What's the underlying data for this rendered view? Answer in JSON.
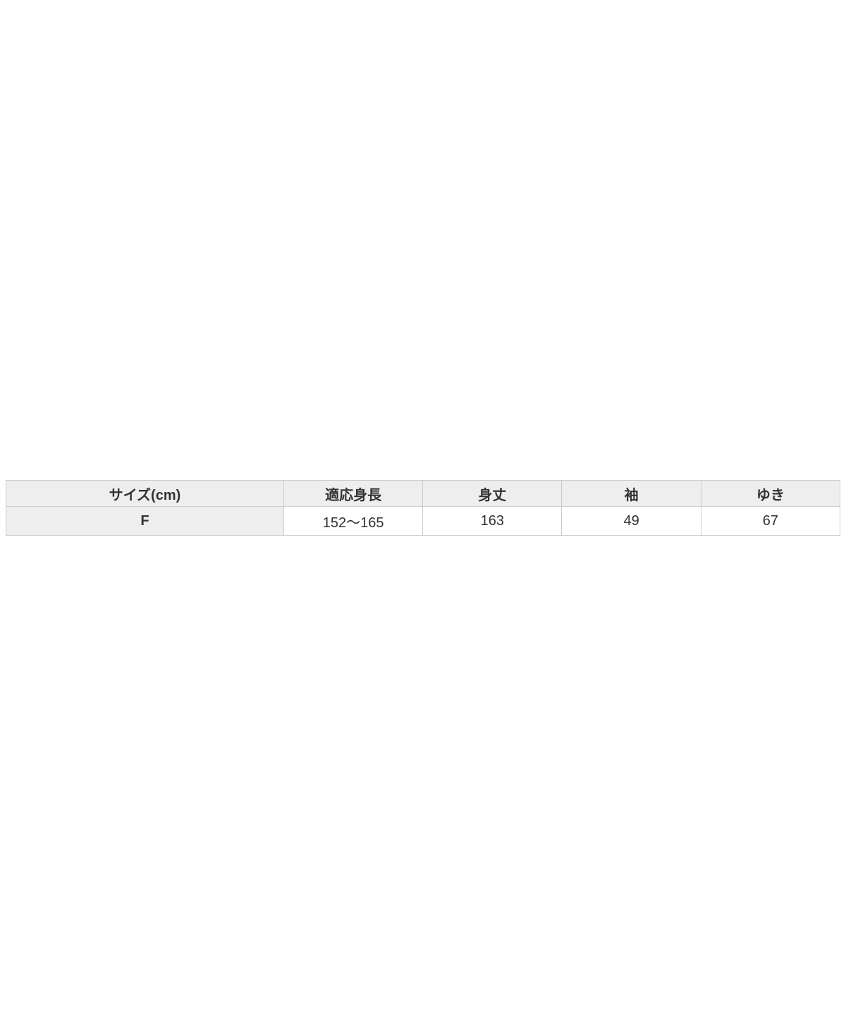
{
  "size_chart": {
    "headers": [
      "サイズ(cm)",
      "適応身長",
      "身丈",
      "袖",
      "ゆき"
    ],
    "row": {
      "size": "F",
      "values": [
        "152〜165",
        "163",
        "49",
        "67"
      ]
    }
  },
  "colors": {
    "header_background": "#eeeeee",
    "row_header_background": "#eeeeee",
    "cell_background": "#ffffff",
    "border": "#cccccc",
    "text": "#333333",
    "page_background": "#ffffff"
  }
}
